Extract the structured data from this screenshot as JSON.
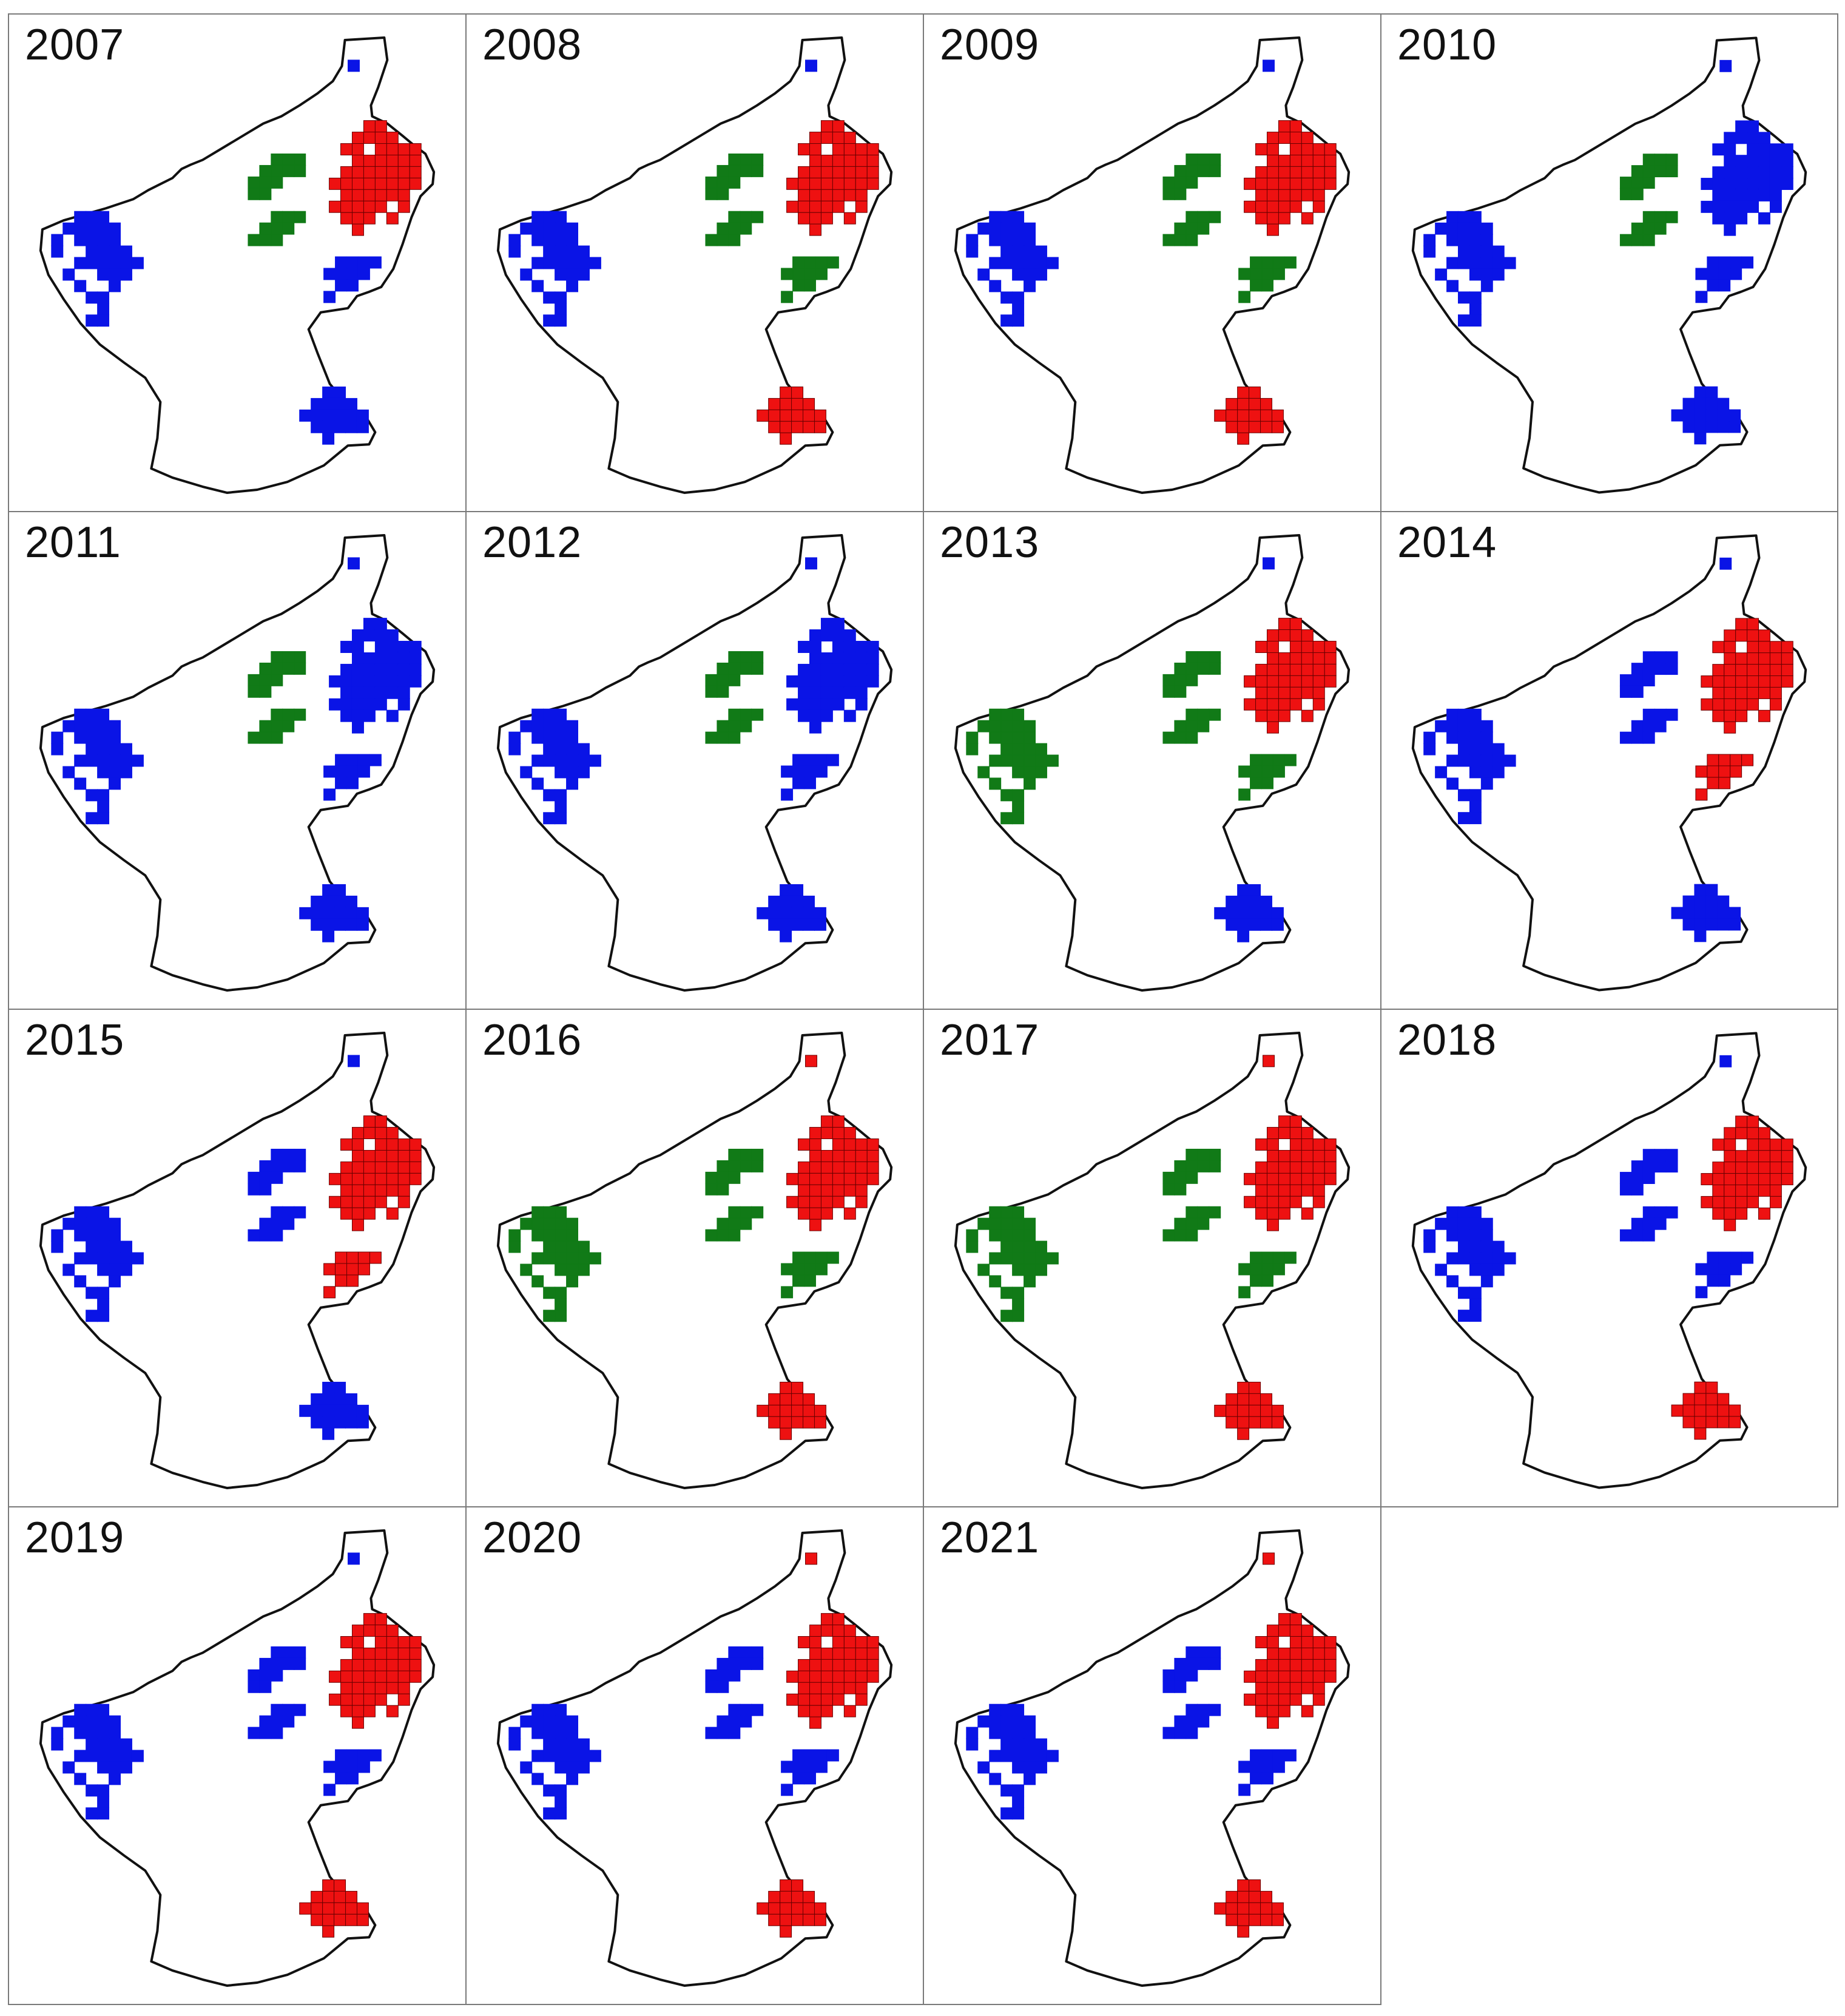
{
  "colors": {
    "blue": "#0a14e6",
    "red": "#ee1111",
    "green": "#117a17",
    "outline": "#111111",
    "cell_border": "#1a1a1a"
  },
  "panels": [
    {
      "year": "2007",
      "scheme": "A"
    },
    {
      "year": "2008",
      "scheme": "B"
    },
    {
      "year": "2009",
      "scheme": "B"
    },
    {
      "year": "2010",
      "scheme": "C"
    },
    {
      "year": "2011",
      "scheme": "C"
    },
    {
      "year": "2012",
      "scheme": "C"
    },
    {
      "year": "2013",
      "scheme": "D"
    },
    {
      "year": "2014",
      "scheme": "E"
    },
    {
      "year": "2015",
      "scheme": "E"
    },
    {
      "year": "2016",
      "scheme": "F"
    },
    {
      "year": "2017",
      "scheme": "F"
    },
    {
      "year": "2018",
      "scheme": "G"
    },
    {
      "year": "2019",
      "scheme": "G"
    },
    {
      "year": "2020",
      "scheme": "H"
    },
    {
      "year": "2021",
      "scheme": "H"
    }
  ],
  "region_schemes": {
    "A": {
      "west": "blue",
      "northeast_core": "red",
      "northeast_west": "green",
      "northeast_south": "blue",
      "far_north": "blue",
      "south": "blue"
    },
    "B": {
      "west": "blue",
      "northeast_core": "red",
      "northeast_west": "green",
      "northeast_south": "green",
      "far_north": "blue",
      "south": "red"
    },
    "C": {
      "west": "blue",
      "northeast_core": "blue",
      "northeast_west": "green",
      "northeast_south": "blue",
      "far_north": "blue",
      "south": "blue"
    },
    "D": {
      "west": "green",
      "northeast_core": "red",
      "northeast_west": "green",
      "northeast_south": "green",
      "far_north": "blue",
      "south": "blue"
    },
    "E": {
      "west": "blue",
      "northeast_core": "red",
      "northeast_west": "blue",
      "northeast_south": "red",
      "far_north": "blue",
      "south": "blue"
    },
    "F": {
      "west": "green",
      "northeast_core": "red",
      "northeast_west": "green",
      "northeast_south": "green",
      "far_north": "red",
      "south": "red"
    },
    "G": {
      "west": "blue",
      "northeast_core": "red",
      "northeast_west": "blue",
      "northeast_south": "blue",
      "far_north": "blue",
      "south": "red"
    },
    "H": {
      "west": "blue",
      "northeast_core": "red",
      "northeast_west": "blue",
      "northeast_south": "blue",
      "far_north": "red",
      "south": "red"
    }
  }
}
